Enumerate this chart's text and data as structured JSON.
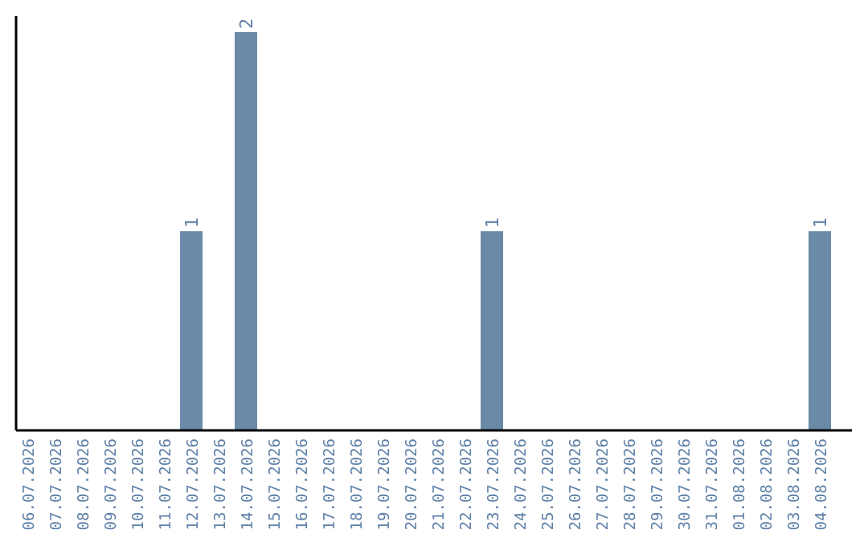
{
  "chart_data": {
    "type": "bar",
    "categories": [
      "06.07.2026",
      "07.07.2026",
      "08.07.2026",
      "09.07.2026",
      "10.07.2026",
      "11.07.2026",
      "12.07.2026",
      "13.07.2026",
      "14.07.2026",
      "15.07.2026",
      "16.07.2026",
      "17.07.2026",
      "18.07.2026",
      "19.07.2026",
      "20.07.2026",
      "21.07.2026",
      "22.07.2026",
      "23.07.2026",
      "24.07.2026",
      "25.07.2026",
      "26.07.2026",
      "27.07.2026",
      "28.07.2026",
      "29.07.2026",
      "30.07.2026",
      "31.07.2026",
      "01.08.2026",
      "02.08.2026",
      "03.08.2026",
      "04.08.2026"
    ],
    "values": [
      0,
      0,
      0,
      0,
      0,
      0,
      1,
      0,
      2,
      0,
      0,
      0,
      0,
      0,
      0,
      0,
      0,
      1,
      0,
      0,
      0,
      0,
      0,
      0,
      0,
      0,
      0,
      0,
      0,
      1
    ],
    "value_labels": [
      null,
      null,
      null,
      null,
      null,
      null,
      "1",
      null,
      "2",
      null,
      null,
      null,
      null,
      null,
      null,
      null,
      null,
      "1",
      null,
      null,
      null,
      null,
      null,
      null,
      null,
      null,
      null,
      null,
      null,
      "1"
    ],
    "color": "#6a8aa8"
  }
}
